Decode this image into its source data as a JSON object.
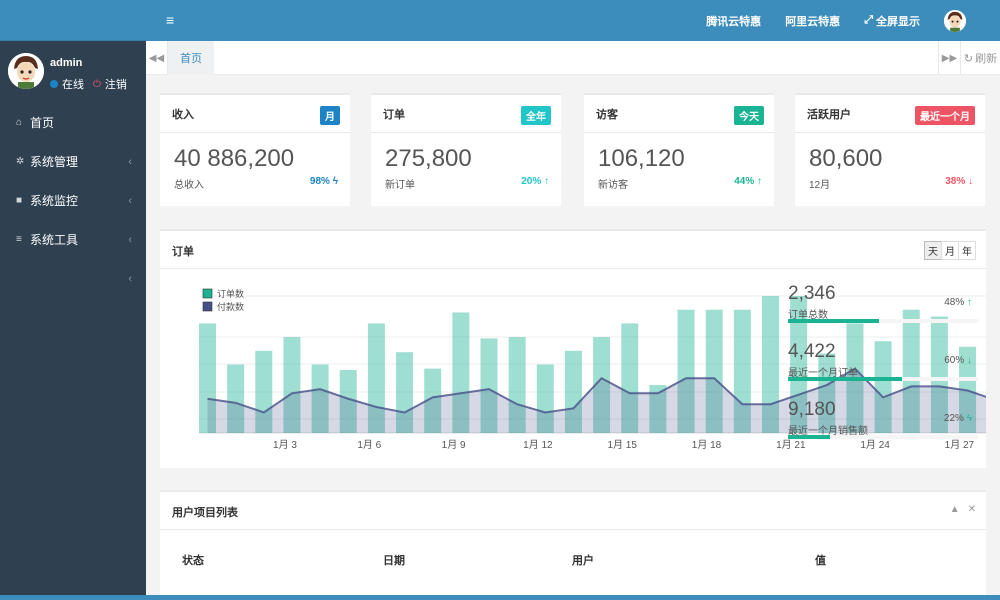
{
  "sidebar": {
    "user": {
      "name": "admin",
      "online": "在线",
      "logout": "注销"
    },
    "items": [
      {
        "label": "首页",
        "icon": "home-icon",
        "has_chevron": false
      },
      {
        "label": "系统管理",
        "icon": "gear-icon",
        "has_chevron": true
      },
      {
        "label": "系统监控",
        "icon": "video-icon",
        "has_chevron": true
      },
      {
        "label": "系统工具",
        "icon": "bars-icon",
        "has_chevron": true
      },
      {
        "label": "",
        "icon": "",
        "has_chevron": true
      }
    ]
  },
  "header": {
    "links": [
      "腾讯云特惠",
      "阿里云特惠",
      "全屏显示"
    ]
  },
  "tabs": {
    "active": "首页",
    "refresh": "刷新"
  },
  "stats": [
    {
      "title": "收入",
      "badge": "月",
      "badge_color": "#1c84c6",
      "value": "40 886,200",
      "sub": "总收入",
      "pct": "98%",
      "trend": "ϟ",
      "pct_color": "#1c84c6"
    },
    {
      "title": "订单",
      "badge": "全年",
      "badge_color": "#23c6c8",
      "value": "275,800",
      "sub": "新订单",
      "pct": "20%",
      "trend": "↑",
      "pct_color": "#23c6c8"
    },
    {
      "title": "访客",
      "badge": "今天",
      "badge_color": "#1ab394",
      "value": "106,120",
      "sub": "新访客",
      "pct": "44%",
      "trend": "↑",
      "pct_color": "#1ab394"
    },
    {
      "title": "活跃用户",
      "badge": "最近一个月",
      "badge_color": "#ed5565",
      "value": "80,600",
      "sub": "12月",
      "pct": "38%",
      "trend": "↓",
      "pct_color": "#ed5565"
    }
  ],
  "orders": {
    "title": "订单",
    "range_buttons": [
      "天",
      "月",
      "年"
    ],
    "kpis": [
      {
        "value": "2,346",
        "label": "订单总数",
        "pct": "48%",
        "trend": "↑",
        "fill": 0.48
      },
      {
        "value": "4,422",
        "label": "最近一个月订单",
        "pct": "60%",
        "trend": "↓",
        "fill": 0.6
      },
      {
        "value": "9,180",
        "label": "最近一个月销售额",
        "pct": "22%",
        "trend": "ϟ",
        "fill": 0.22
      }
    ]
  },
  "chart_data": {
    "type": "bar",
    "series": [
      {
        "name": "订单数",
        "color": "#1ab394",
        "values": [
          8,
          5,
          6,
          7,
          5,
          4.6,
          8,
          5.9,
          4.7,
          8.8,
          6.9,
          7,
          5,
          6,
          7,
          8,
          3.5,
          9,
          9,
          9,
          10,
          10,
          5.8,
          8,
          6.7,
          9,
          8.5,
          6.3,
          6.8,
          7.2,
          6.8,
          6
        ]
      },
      {
        "name": "付款数",
        "color": "#464f88",
        "values": [
          2.5,
          2.2,
          1.5,
          2.9,
          3.2,
          2.5,
          1.9,
          1.5,
          2.6,
          2.9,
          3.2,
          2.1,
          1.5,
          1.8,
          4,
          2.9,
          2.9,
          4,
          4,
          2.1,
          2.1,
          2.8,
          3.5,
          4.7,
          2.6,
          3.4,
          3.4,
          3.1,
          2.4,
          1.8,
          1.3,
          1.8
        ]
      }
    ],
    "x_tick_labels": [
      "1月 3",
      "1月 6",
      "1月 9",
      "1月 12",
      "1月 15",
      "1月 18",
      "1月 21",
      "1月 24",
      "1月 27"
    ],
    "xlabel": "",
    "ylabel": "",
    "grid": true,
    "legend_position": "top-left"
  },
  "users_table": {
    "title": "用户项目列表",
    "columns": [
      "状态",
      "日期",
      "用户",
      "值"
    ]
  }
}
